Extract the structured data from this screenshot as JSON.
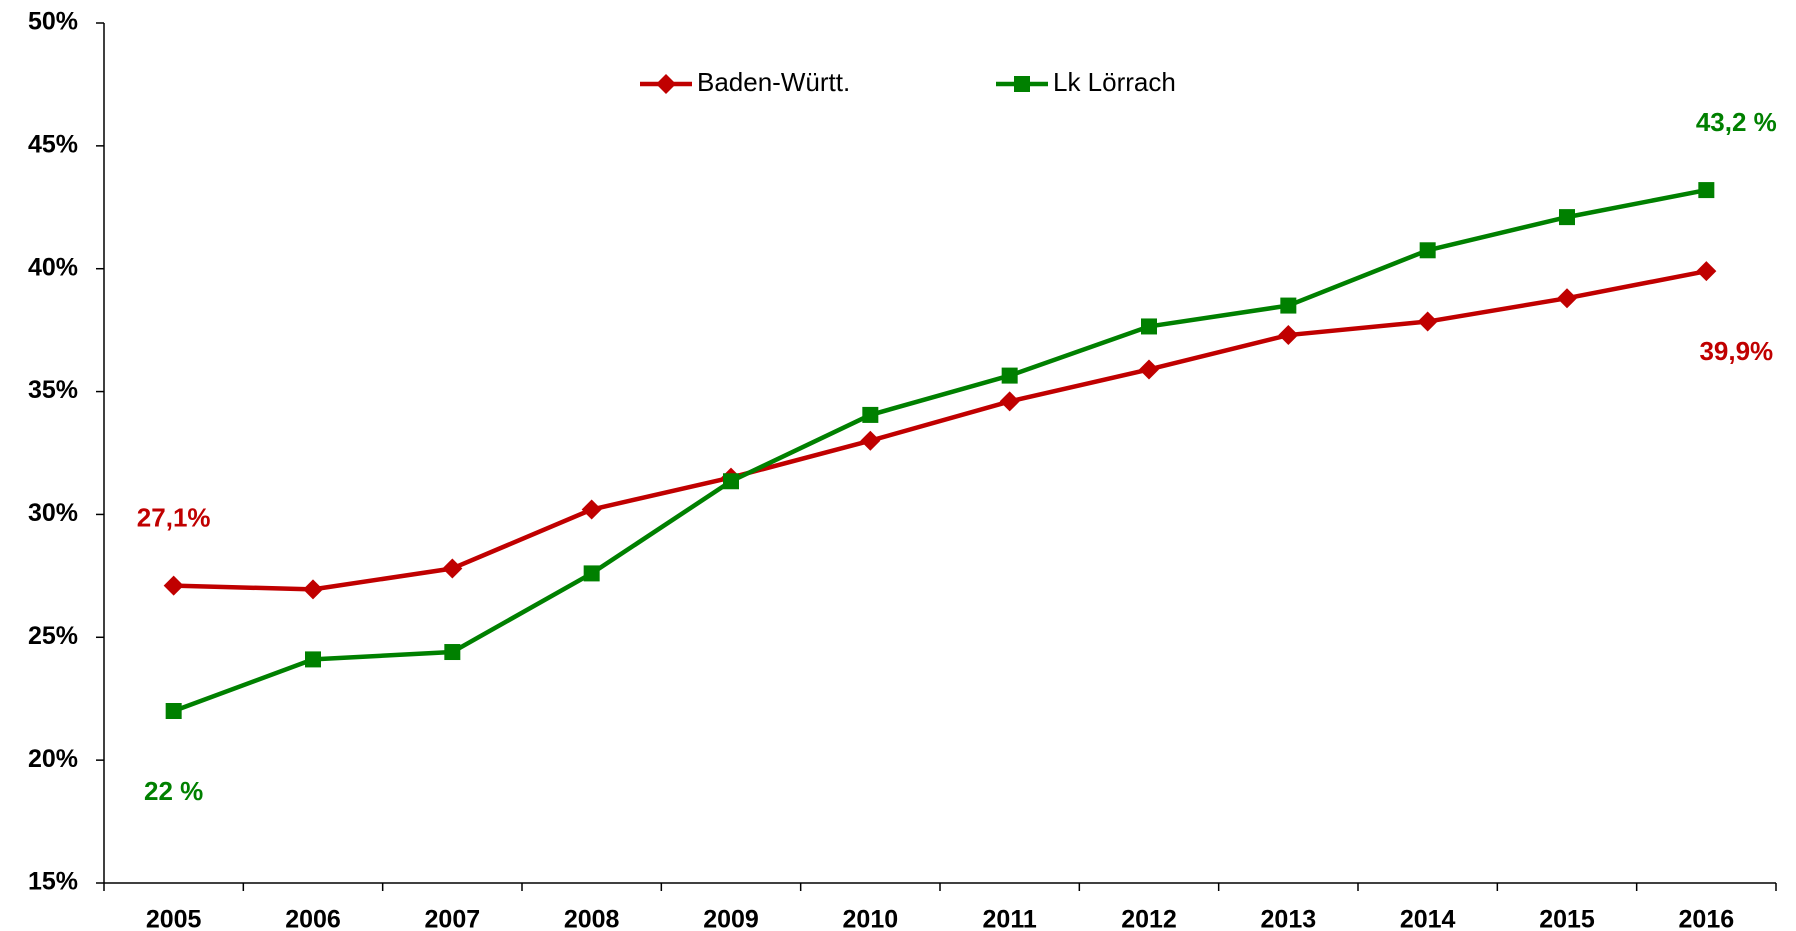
{
  "chart_data": {
    "type": "line",
    "categories": [
      "2005",
      "2006",
      "2007",
      "2008",
      "2009",
      "2010",
      "2011",
      "2012",
      "2013",
      "2014",
      "2015",
      "2016"
    ],
    "series": [
      {
        "name": "Baden-Württ.",
        "color": "#c00000",
        "marker": "diamond",
        "values": [
          27.1,
          26.95,
          27.8,
          30.2,
          31.5,
          33.0,
          34.6,
          35.9,
          37.3,
          37.85,
          38.8,
          39.9
        ],
        "value_labels": [
          "27,1%",
          null,
          null,
          null,
          null,
          null,
          null,
          null,
          null,
          null,
          null,
          "39,9%"
        ]
      },
      {
        "name": "Lk Lörrach",
        "color": "#008000",
        "marker": "square",
        "values": [
          22,
          24.1,
          24.4,
          27.6,
          31.35,
          34.05,
          35.65,
          37.65,
          38.5,
          40.75,
          42.1,
          43.2
        ],
        "value_labels": [
          "22 %",
          null,
          null,
          null,
          null,
          null,
          null,
          null,
          null,
          null,
          null,
          "43,2 %"
        ]
      }
    ],
    "ylim": [
      15,
      50
    ],
    "yticks": [
      {
        "value": 15,
        "label": "15%"
      },
      {
        "value": 20,
        "label": "20%"
      },
      {
        "value": 25,
        "label": "25%"
      },
      {
        "value": 30,
        "label": "30%"
      },
      {
        "value": 35,
        "label": "35%"
      },
      {
        "value": 40,
        "label": "40%"
      },
      {
        "value": 45,
        "label": "45%"
      },
      {
        "value": 50,
        "label": "50%"
      }
    ],
    "grid": false,
    "legend": "top"
  }
}
